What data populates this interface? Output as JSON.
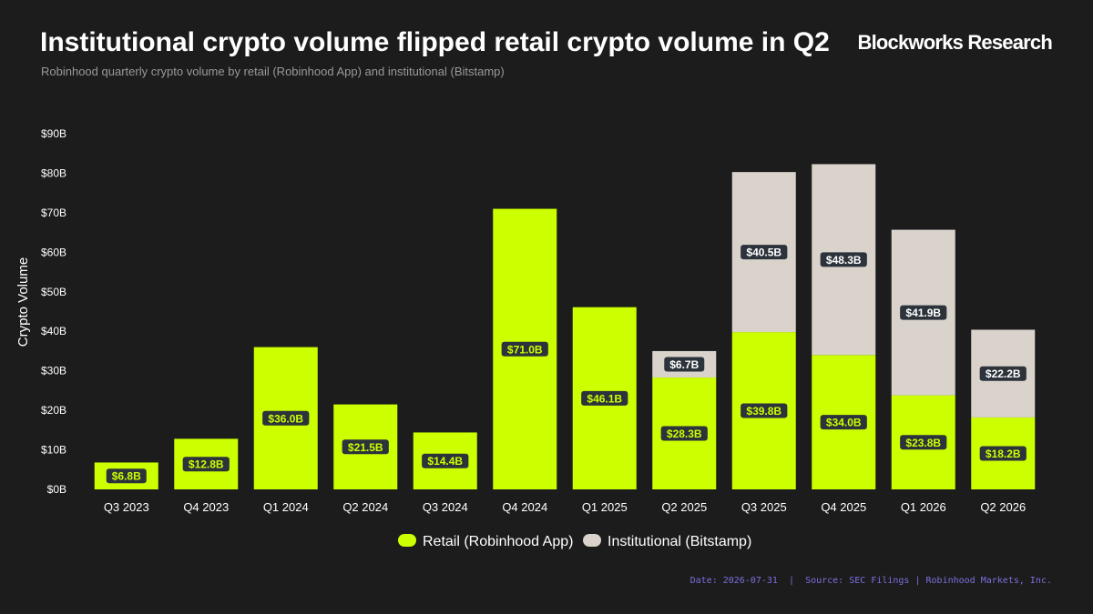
{
  "header": {
    "title": "Institutional crypto volume flipped retail crypto volume in Q2",
    "subtitle": "Robinhood quarterly crypto volume by retail (Robinhood App) and institutional (Bitstamp)",
    "brand": "Blockworks Research"
  },
  "footer": {
    "date": "Date: 2026-07-31",
    "separator": "|",
    "source": "Source: SEC Filings | Robinhood Markets, Inc."
  },
  "colors": {
    "background": "#1c1c1c",
    "retail": "#ccff00",
    "institutional": "#d9d3cc",
    "label_bg": "#2c333b",
    "retail_label_text": "#ccff00",
    "institutional_label_text": "#ffffff",
    "axis_text": "#ffffff"
  },
  "chart_data": {
    "type": "bar",
    "stacked": true,
    "ylabel": "Crypto Volume",
    "xlabel": "",
    "ylim": [
      0,
      90
    ],
    "yticks": [
      0,
      10,
      20,
      30,
      40,
      50,
      60,
      70,
      80,
      90
    ],
    "ytick_labels": [
      "$0B",
      "$10B",
      "$20B",
      "$30B",
      "$40B",
      "$50B",
      "$60B",
      "$70B",
      "$80B",
      "$90B"
    ],
    "grid": false,
    "legend_position": "bottom-center",
    "categories": [
      "Q3 2023",
      "Q4 2023",
      "Q1 2024",
      "Q2 2024",
      "Q3 2024",
      "Q4 2024",
      "Q1 2025",
      "Q2 2025",
      "Q3 2025",
      "Q4 2025",
      "Q1 2026",
      "Q2 2026"
    ],
    "series": [
      {
        "name": "Retail (Robinhood App)",
        "color": "#ccff00",
        "values": [
          6.8,
          12.8,
          36.0,
          21.5,
          14.4,
          71.0,
          46.1,
          28.3,
          39.8,
          34.0,
          23.8,
          18.2
        ],
        "labels": [
          "$6.8B",
          "$12.8B",
          "$36.0B",
          "$21.5B",
          "$14.4B",
          "$71.0B",
          "$46.1B",
          "$28.3B",
          "$39.8B",
          "$34.0B",
          "$23.8B",
          "$18.2B"
        ]
      },
      {
        "name": "Institutional (Bitstamp)",
        "color": "#d9d3cc",
        "values": [
          null,
          null,
          null,
          null,
          null,
          null,
          null,
          6.7,
          40.5,
          48.3,
          41.9,
          22.2
        ],
        "labels": [
          "",
          "",
          "",
          "",
          "",
          "",
          "",
          "$6.7B",
          "$40.5B",
          "$48.3B",
          "$41.9B",
          "$22.2B"
        ]
      }
    ]
  }
}
